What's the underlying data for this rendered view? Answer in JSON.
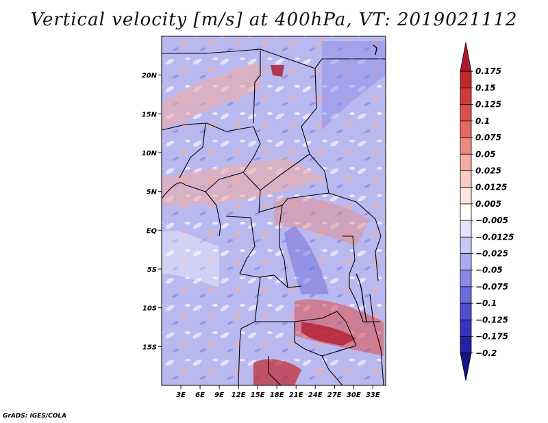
{
  "title": "Vertical velocity [m/s] at 400hPa, VT: 2019021112",
  "credit": "GrADS: IGES/COLA",
  "map": {
    "lon_range": [
      0,
      35
    ],
    "lat_range": [
      -20,
      25
    ],
    "lat_ticks": [
      {
        "value": 20,
        "label": "20N"
      },
      {
        "value": 15,
        "label": "15N"
      },
      {
        "value": 10,
        "label": "10N"
      },
      {
        "value": 5,
        "label": "5N"
      },
      {
        "value": 0,
        "label": "EQ"
      },
      {
        "value": -5,
        "label": "5S"
      },
      {
        "value": -10,
        "label": "10S"
      },
      {
        "value": -15,
        "label": "15S"
      }
    ],
    "lon_ticks": [
      {
        "value": 3,
        "label": "3E"
      },
      {
        "value": 6,
        "label": "6E"
      },
      {
        "value": 9,
        "label": "9E"
      },
      {
        "value": 12,
        "label": "12E"
      },
      {
        "value": 15,
        "label": "15E"
      },
      {
        "value": 18,
        "label": "18E"
      },
      {
        "value": 21,
        "label": "21E"
      },
      {
        "value": 24,
        "label": "24E"
      },
      {
        "value": 27,
        "label": "27E"
      },
      {
        "value": 30,
        "label": "30E"
      },
      {
        "value": 33,
        "label": "33E"
      }
    ]
  },
  "colorbar": {
    "labels": [
      "0.175",
      "0.15",
      "0.125",
      "0.1",
      "0.075",
      "0.05",
      "0.025",
      "0.0125",
      "0.005",
      "−0.005",
      "−0.0125",
      "−0.025",
      "−0.05",
      "−0.075",
      "−0.1",
      "−0.125",
      "−0.175",
      "−0.2"
    ],
    "colors": [
      "#b2182b",
      "#c1272d",
      "#cf3a3a",
      "#db4f4c",
      "#e46a63",
      "#ec8a80",
      "#f3aca2",
      "#f8cbc4",
      "#fce6e2",
      "#ffffff",
      "#e3e3fb",
      "#c8c8f5",
      "#a9a9ee",
      "#8a8ae6",
      "#6b6bdc",
      "#4d4dd0",
      "#3434bf",
      "#2222a6",
      "#141488"
    ]
  }
}
